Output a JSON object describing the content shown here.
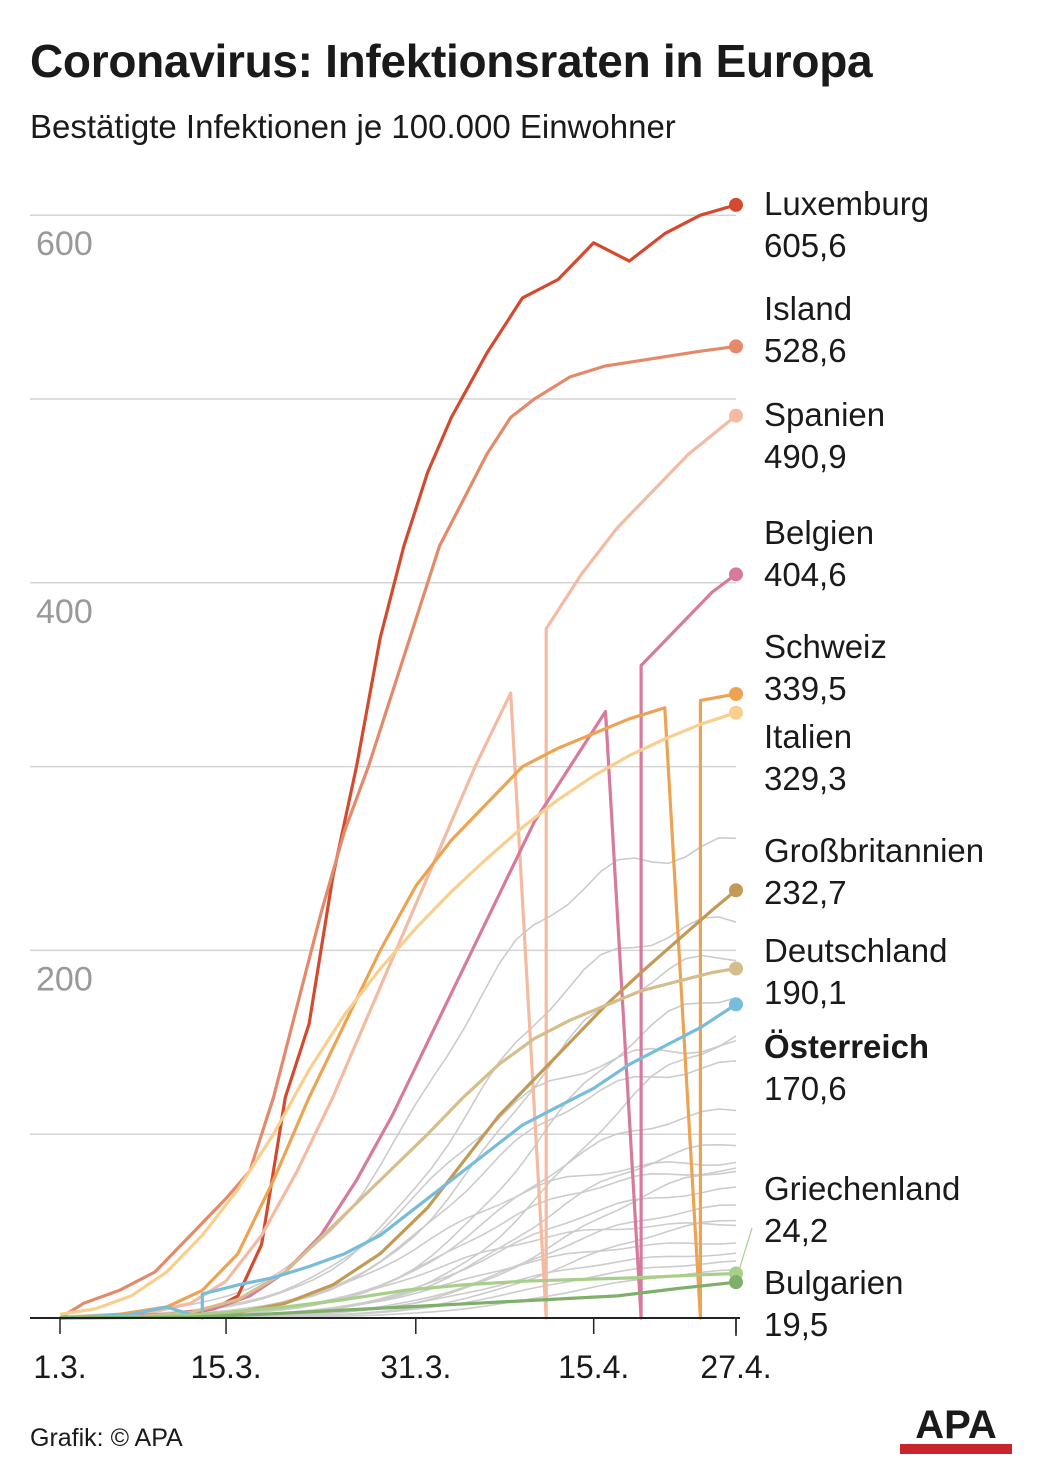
{
  "title": "Coronavirus: Infektionsraten in Europa",
  "subtitle": "Bestätigte Infektionen je 100.000 Einwohner",
  "footer": "Grafik: © APA",
  "logo_text": "APA",
  "colors": {
    "grid": "#d4d4d4",
    "axis": "#999999",
    "background_lines": "#cccccc",
    "logo_bar": "#c8262c"
  },
  "chart_data": {
    "type": "line",
    "ylim": [
      0,
      600
    ],
    "xlim": [
      "2020-03-01",
      "2020-04-27"
    ],
    "y_tick_labels": [
      {
        "value": 200,
        "label": "200"
      },
      {
        "value": 400,
        "label": "400"
      },
      {
        "value": 600,
        "label": "600"
      }
    ],
    "x_tick_labels": [
      {
        "date": "2020-03-01",
        "label": "1.3."
      },
      {
        "date": "2020-03-15",
        "label": "15.3."
      },
      {
        "date": "2020-03-31",
        "label": "31.3."
      },
      {
        "date": "2020-04-15",
        "label": "15.4."
      },
      {
        "date": "2020-04-27",
        "label": "27.4."
      }
    ],
    "series": [
      {
        "name": "Luxemburg",
        "value_label": "605,6",
        "color": "#d44a2e",
        "bold": false,
        "points": [
          [
            "2020-03-01",
            0
          ],
          [
            "2020-03-10",
            1
          ],
          [
            "2020-03-14",
            5
          ],
          [
            "2020-03-16",
            12
          ],
          [
            "2020-03-18",
            40
          ],
          [
            "2020-03-20",
            120
          ],
          [
            "2020-03-22",
            160
          ],
          [
            "2020-03-24",
            240
          ],
          [
            "2020-03-26",
            300
          ],
          [
            "2020-03-28",
            370
          ],
          [
            "2020-03-30",
            420
          ],
          [
            "2020-04-01",
            460
          ],
          [
            "2020-04-03",
            490
          ],
          [
            "2020-04-06",
            525
          ],
          [
            "2020-04-09",
            555
          ],
          [
            "2020-04-12",
            565
          ],
          [
            "2020-04-15",
            585
          ],
          [
            "2020-04-18",
            575
          ],
          [
            "2020-04-21",
            590
          ],
          [
            "2020-04-24",
            600
          ],
          [
            "2020-04-27",
            605.6
          ]
        ]
      },
      {
        "name": "Island",
        "value_label": "528,6",
        "color": "#e48a6a",
        "bold": false,
        "points": [
          [
            "2020-03-01",
            0
          ],
          [
            "2020-03-03",
            8
          ],
          [
            "2020-03-06",
            15
          ],
          [
            "2020-03-09",
            25
          ],
          [
            "2020-03-12",
            45
          ],
          [
            "2020-03-15",
            65
          ],
          [
            "2020-03-17",
            80
          ],
          [
            "2020-03-19",
            120
          ],
          [
            "2020-03-21",
            170
          ],
          [
            "2020-03-23",
            220
          ],
          [
            "2020-03-25",
            265
          ],
          [
            "2020-03-27",
            300
          ],
          [
            "2020-03-29",
            340
          ],
          [
            "2020-03-31",
            380
          ],
          [
            "2020-04-02",
            420
          ],
          [
            "2020-04-04",
            445
          ],
          [
            "2020-04-06",
            470
          ],
          [
            "2020-04-08",
            490
          ],
          [
            "2020-04-10",
            500
          ],
          [
            "2020-04-13",
            512
          ],
          [
            "2020-04-16",
            518
          ],
          [
            "2020-04-20",
            522
          ],
          [
            "2020-04-24",
            526
          ],
          [
            "2020-04-27",
            528.6
          ]
        ]
      },
      {
        "name": "Spanien",
        "value_label": "490,9",
        "color": "#f2bba2",
        "bold": false,
        "points": [
          [
            "2020-03-01",
            0
          ],
          [
            "2020-03-08",
            2
          ],
          [
            "2020-03-12",
            8
          ],
          [
            "2020-03-15",
            20
          ],
          [
            "2020-03-18",
            45
          ],
          [
            "2020-03-21",
            80
          ],
          [
            "2020-03-24",
            120
          ],
          [
            "2020-03-27",
            165
          ],
          [
            "2020-03-30",
            210
          ],
          [
            "2020-04-02",
            255
          ],
          [
            "2020-04-05",
            300
          ],
          [
            "2020-04-08",
            340
          ],
          [
            "2020-04-11,",
            0
          ],
          [
            "2020-04-11",
            375
          ],
          [
            "2020-04-14",
            405
          ],
          [
            "2020-04-17",
            430
          ],
          [
            "2020-04-20",
            450
          ],
          [
            "2020-04-23",
            470
          ],
          [
            "2020-04-27",
            490.9
          ]
        ]
      },
      {
        "name": "Belgien",
        "value_label": "404,6",
        "color": "#d67a9e",
        "bold": false,
        "points": [
          [
            "2020-03-01",
            0
          ],
          [
            "2020-03-10",
            2
          ],
          [
            "2020-03-14",
            5
          ],
          [
            "2020-03-17",
            12
          ],
          [
            "2020-03-20",
            25
          ],
          [
            "2020-03-23",
            45
          ],
          [
            "2020-03-26",
            75
          ],
          [
            "2020-03-29",
            110
          ],
          [
            "2020-04-01",
            150
          ],
          [
            "2020-04-04",
            190
          ],
          [
            "2020-04-07",
            230
          ],
          [
            "2020-04-10",
            270
          ],
          [
            "2020-04-13",
            300
          ],
          [
            "2020-04-16",
            330
          ],
          [
            "2020-04-19,",
            0
          ],
          [
            "2020-04-19",
            355
          ],
          [
            "2020-04-22",
            375
          ],
          [
            "2020-04-25",
            395
          ],
          [
            "2020-04-27",
            404.6
          ]
        ]
      },
      {
        "name": "Schweiz",
        "value_label": "339,5",
        "color": "#eca454",
        "bold": false,
        "points": [
          [
            "2020-03-01",
            0
          ],
          [
            "2020-03-06",
            2
          ],
          [
            "2020-03-10",
            6
          ],
          [
            "2020-03-13",
            15
          ],
          [
            "2020-03-16",
            35
          ],
          [
            "2020-03-19",
            75
          ],
          [
            "2020-03-22",
            120
          ],
          [
            "2020-03-25",
            160
          ],
          [
            "2020-03-28",
            200
          ],
          [
            "2020-03-31",
            235
          ],
          [
            "2020-04-03",
            260
          ],
          [
            "2020-04-06",
            280
          ],
          [
            "2020-04-09",
            300
          ],
          [
            "2020-04-12",
            310
          ],
          [
            "2020-04-15",
            318
          ],
          [
            "2020-04-18",
            326
          ],
          [
            "2020-04-21",
            332
          ],
          [
            "2020-04-24,",
            0
          ],
          [
            "2020-04-24",
            336
          ],
          [
            "2020-04-27",
            339.5
          ]
        ]
      },
      {
        "name": "Italien",
        "value_label": "329,3",
        "color": "#f8cf8e",
        "bold": false,
        "points": [
          [
            "2020-03-01",
            2
          ],
          [
            "2020-03-04",
            5
          ],
          [
            "2020-03-07",
            12
          ],
          [
            "2020-03-10",
            25
          ],
          [
            "2020-03-13",
            45
          ],
          [
            "2020-03-16",
            70
          ],
          [
            "2020-03-19",
            100
          ],
          [
            "2020-03-22",
            135
          ],
          [
            "2020-03-25",
            165
          ],
          [
            "2020-03-28",
            190
          ],
          [
            "2020-03-31",
            212
          ],
          [
            "2020-04-03",
            232
          ],
          [
            "2020-04-06",
            250
          ],
          [
            "2020-04-09",
            267
          ],
          [
            "2020-04-12",
            282
          ],
          [
            "2020-04-15",
            295
          ],
          [
            "2020-04-18",
            306
          ],
          [
            "2020-04-21",
            315
          ],
          [
            "2020-04-24",
            323
          ],
          [
            "2020-04-27",
            329.3
          ]
        ]
      },
      {
        "name": "Großbritannien",
        "value_label": "232,7",
        "color": "#c39a55",
        "bold": false,
        "points": [
          [
            "2020-03-01",
            0
          ],
          [
            "2020-03-12",
            1
          ],
          [
            "2020-03-16",
            3
          ],
          [
            "2020-03-20",
            8
          ],
          [
            "2020-03-24",
            18
          ],
          [
            "2020-03-28",
            35
          ],
          [
            "2020-04-01",
            60
          ],
          [
            "2020-04-04",
            85
          ],
          [
            "2020-04-07",
            110
          ],
          [
            "2020-04-10",
            130
          ],
          [
            "2020-04-13",
            150
          ],
          [
            "2020-04-16",
            170
          ],
          [
            "2020-04-19",
            188
          ],
          [
            "2020-04-22",
            205
          ],
          [
            "2020-04-25",
            222
          ],
          [
            "2020-04-27",
            232.7
          ]
        ]
      },
      {
        "name": "Deutschland",
        "value_label": "190,1",
        "color": "#d5be8c",
        "bold": false,
        "points": [
          [
            "2020-03-01",
            0
          ],
          [
            "2020-03-08",
            1
          ],
          [
            "2020-03-12",
            3
          ],
          [
            "2020-03-16",
            10
          ],
          [
            "2020-03-20",
            25
          ],
          [
            "2020-03-24",
            50
          ],
          [
            "2020-03-28",
            75
          ],
          [
            "2020-04-01",
            100
          ],
          [
            "2020-04-04",
            120
          ],
          [
            "2020-04-07",
            138
          ],
          [
            "2020-04-10",
            152
          ],
          [
            "2020-04-13",
            162
          ],
          [
            "2020-04-16",
            170
          ],
          [
            "2020-04-19",
            178
          ],
          [
            "2020-04-22",
            183
          ],
          [
            "2020-04-25",
            188
          ],
          [
            "2020-04-27",
            190.1
          ]
        ]
      },
      {
        "name": "Österreich",
        "value_label": "170,6",
        "color": "#78bcdb",
        "bold": true,
        "points": [
          [
            "2020-03-01",
            0
          ],
          [
            "2020-03-07",
            2
          ],
          [
            "2020-03-10",
            6
          ],
          [
            "2020-03-13,",
            0
          ],
          [
            "2020-03-13",
            13
          ],
          [
            "2020-03-16",
            18
          ],
          [
            "2020-03-19",
            22
          ],
          [
            "2020-03-22",
            28
          ],
          [
            "2020-03-25",
            35
          ],
          [
            "2020-03-28",
            45
          ],
          [
            "2020-03-31",
            60
          ],
          [
            "2020-04-03",
            75
          ],
          [
            "2020-04-06",
            90
          ],
          [
            "2020-04-09",
            105
          ],
          [
            "2020-04-12",
            115
          ],
          [
            "2020-04-15",
            125
          ],
          [
            "2020-04-18",
            138
          ],
          [
            "2020-04-21",
            148
          ],
          [
            "2020-04-24",
            158
          ],
          [
            "2020-04-27",
            170.6
          ]
        ]
      },
      {
        "name": "Griechenland",
        "value_label": "24,2",
        "color": "#a8cf8a",
        "bold": false,
        "points": [
          [
            "2020-03-01",
            0
          ],
          [
            "2020-03-10",
            1
          ],
          [
            "2020-03-15",
            3
          ],
          [
            "2020-03-20",
            6
          ],
          [
            "2020-03-25",
            10
          ],
          [
            "2020-03-30",
            15
          ],
          [
            "2020-04-04",
            18
          ],
          [
            "2020-04-09",
            20
          ],
          [
            "2020-04-14",
            21
          ],
          [
            "2020-04-19",
            22
          ],
          [
            "2020-04-24",
            23.5
          ],
          [
            "2020-04-27",
            24.2
          ]
        ]
      },
      {
        "name": "Bulgarien",
        "value_label": "19,5",
        "color": "#7fb06b",
        "bold": false,
        "points": [
          [
            "2020-03-01",
            0
          ],
          [
            "2020-03-12",
            0.5
          ],
          [
            "2020-03-18",
            2
          ],
          [
            "2020-03-24",
            4
          ],
          [
            "2020-03-30",
            6
          ],
          [
            "2020-04-05",
            8
          ],
          [
            "2020-04-11",
            10
          ],
          [
            "2020-04-17",
            12
          ],
          [
            "2020-04-22",
            16
          ],
          [
            "2020-04-27",
            19.5
          ]
        ]
      }
    ],
    "background_series_end_values": [
      260,
      220,
      204,
      186,
      166,
      150,
      140,
      116,
      100,
      88,
      86,
      82,
      72,
      64,
      58,
      52,
      42,
      36,
      32,
      28
    ]
  }
}
